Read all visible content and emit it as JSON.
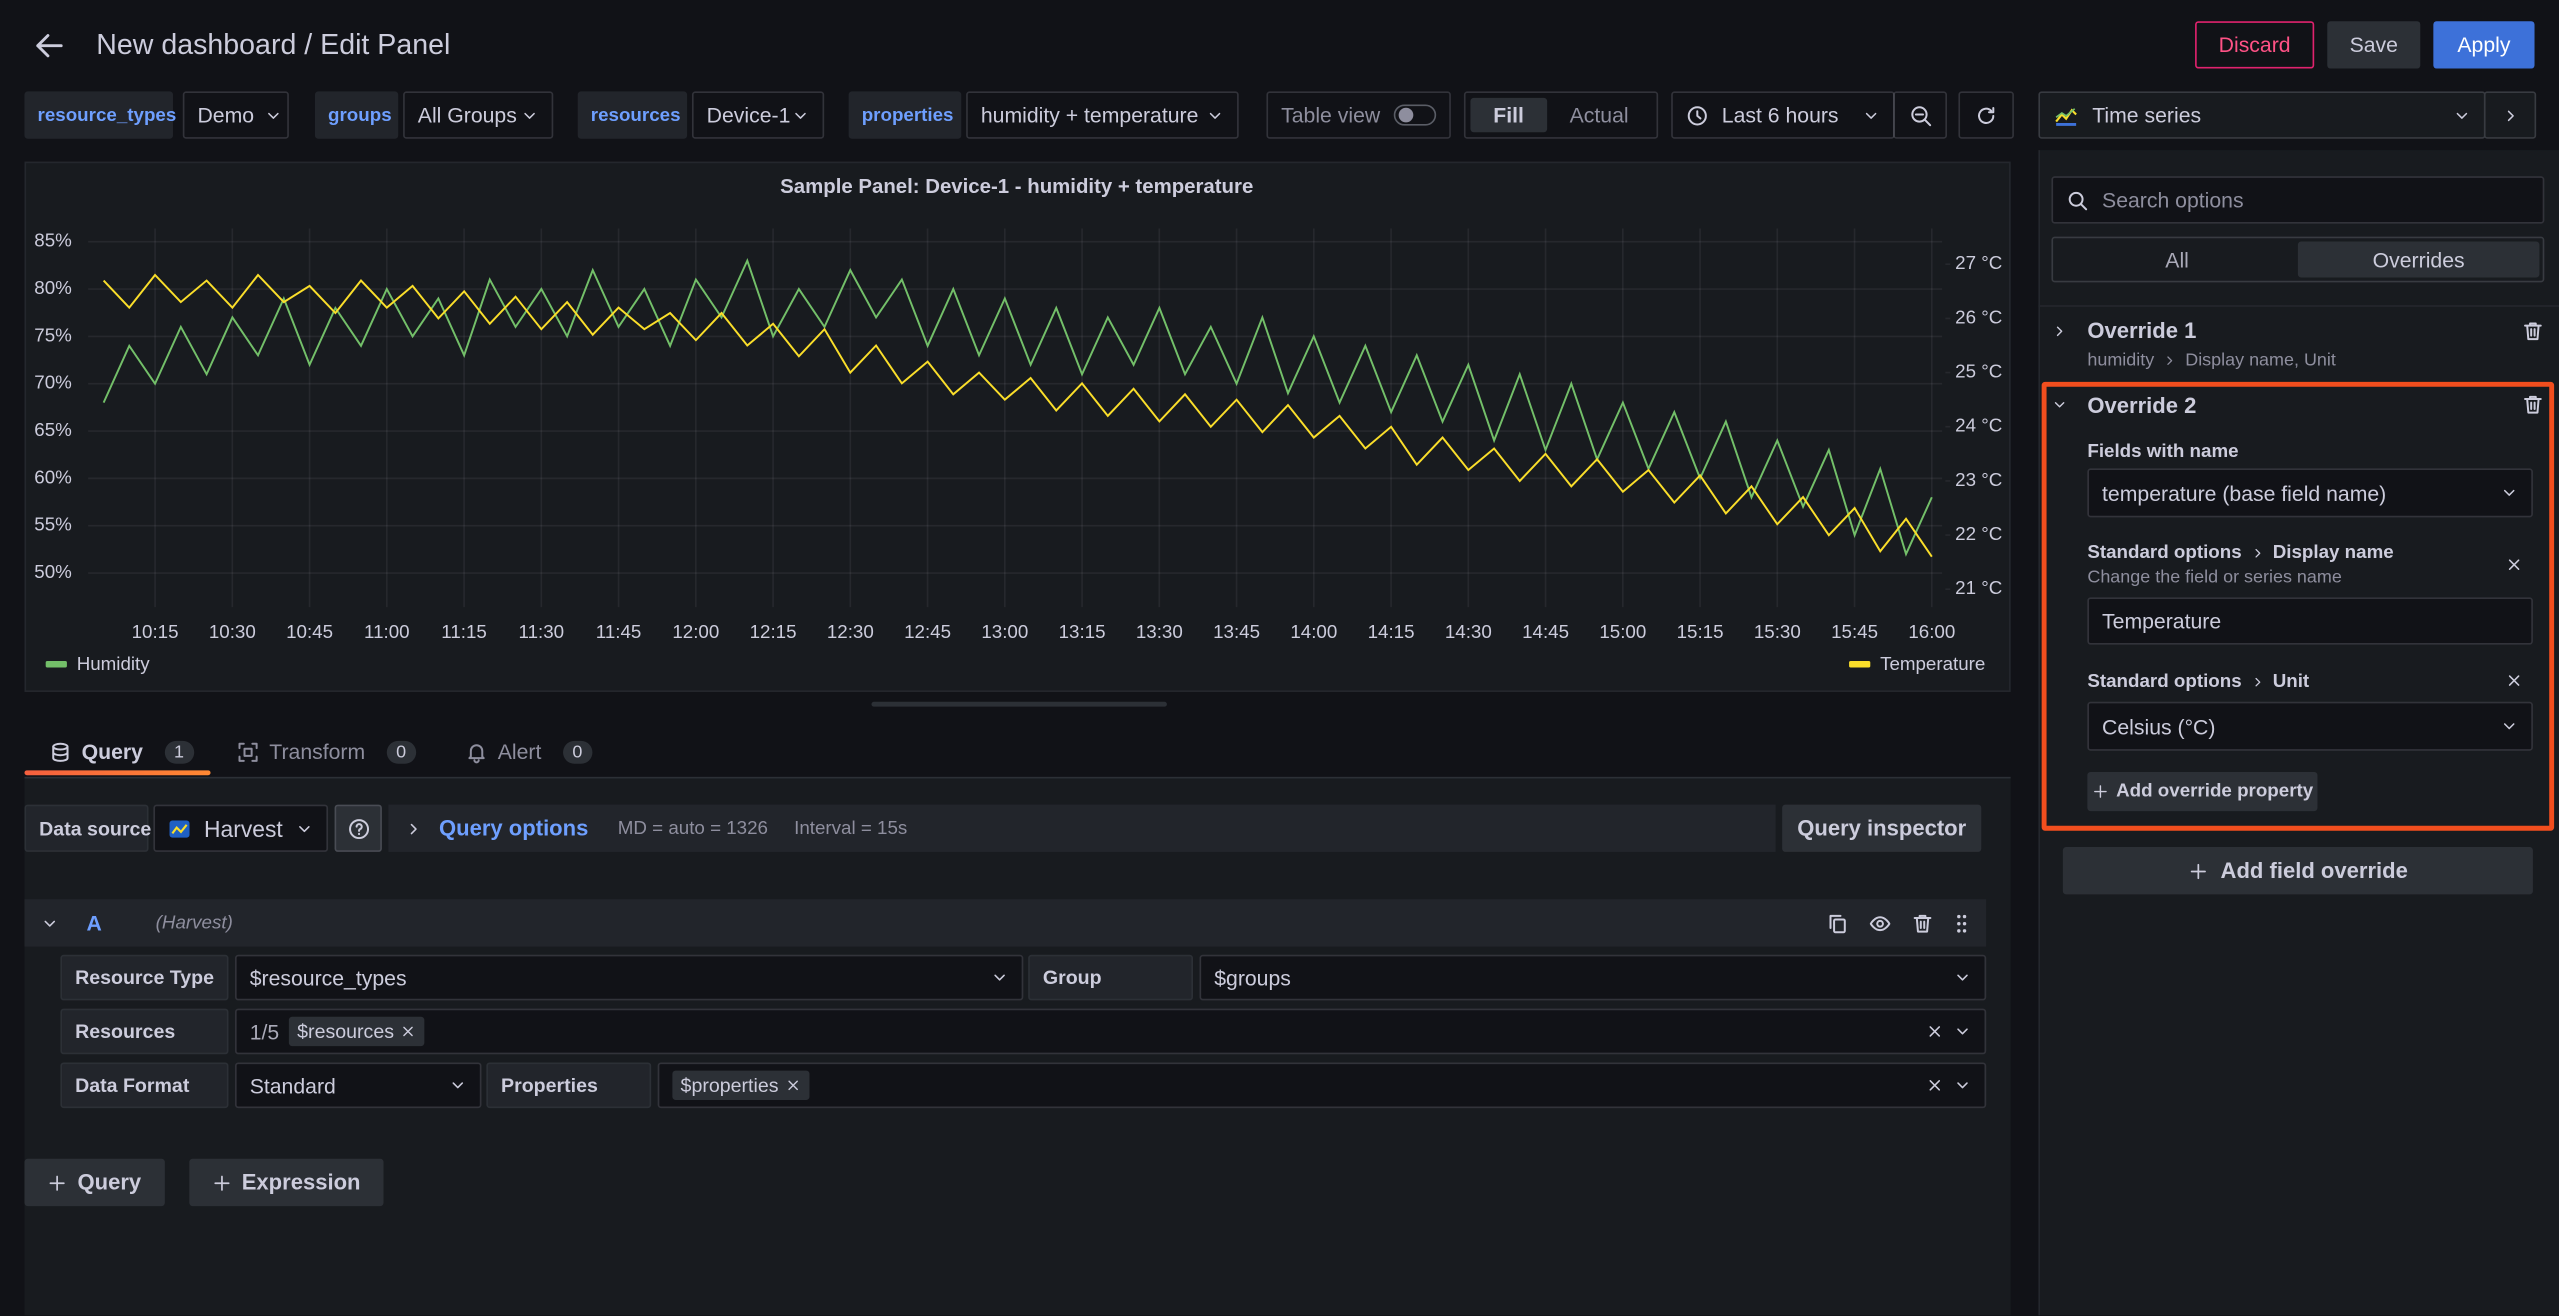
{
  "header": {
    "title": "New dashboard / Edit Panel",
    "buttons": [
      "Discard",
      "Save",
      "Apply"
    ]
  },
  "variables": [
    {
      "label": "resource_types",
      "value": "Demo"
    },
    {
      "label": "groups",
      "value": "All Groups"
    },
    {
      "label": "resources",
      "value": "Device-1"
    },
    {
      "label": "properties",
      "value": "humidity + temperature"
    }
  ],
  "toolbar": {
    "table_view": "Table view",
    "fill": "Fill",
    "actual": "Actual",
    "time_range": "Last 6 hours",
    "visualization": "Time series"
  },
  "chart_data": {
    "type": "line",
    "title": "Sample Panel: Device-1 - humidity + temperature",
    "grid": true,
    "x": [
      "10:05",
      "10:10",
      "10:15",
      "10:20",
      "10:25",
      "10:30",
      "10:35",
      "10:40",
      "10:45",
      "10:50",
      "10:55",
      "11:00",
      "11:05",
      "11:10",
      "11:15",
      "11:20",
      "11:25",
      "11:30",
      "11:35",
      "11:40",
      "11:45",
      "11:50",
      "11:55",
      "12:00",
      "12:05",
      "12:10",
      "12:15",
      "12:20",
      "12:25",
      "12:30",
      "12:35",
      "12:40",
      "12:45",
      "12:50",
      "12:55",
      "13:00",
      "13:05",
      "13:10",
      "13:15",
      "13:20",
      "13:25",
      "13:30",
      "13:35",
      "13:40",
      "13:45",
      "13:50",
      "13:55",
      "14:00",
      "14:05",
      "14:10",
      "14:15",
      "14:20",
      "14:25",
      "14:30",
      "14:35",
      "14:40",
      "14:45",
      "14:50",
      "14:55",
      "15:00",
      "15:05",
      "15:10",
      "15:15",
      "15:20",
      "15:25",
      "15:30",
      "15:35",
      "15:40",
      "15:45",
      "15:50",
      "15:55",
      "16:00"
    ],
    "xlim": [
      "10:02",
      "16:02"
    ],
    "xticks": [
      "10:15",
      "10:30",
      "10:45",
      "11:00",
      "11:15",
      "11:30",
      "11:45",
      "12:00",
      "12:15",
      "12:30",
      "12:45",
      "13:00",
      "13:15",
      "13:30",
      "13:45",
      "14:00",
      "14:15",
      "14:30",
      "14:45",
      "15:00",
      "15:15",
      "15:30",
      "15:45",
      "16:00"
    ],
    "ylim": [
      46.4,
      86.4
    ],
    "yticks": [
      {
        "value": 50,
        "label": "50%"
      },
      {
        "value": 55,
        "label": "55%"
      },
      {
        "value": 60,
        "label": "60%"
      },
      {
        "value": 65,
        "label": "65%"
      },
      {
        "value": 70,
        "label": "70%"
      },
      {
        "value": 75,
        "label": "75%"
      },
      {
        "value": 80,
        "label": "80%"
      },
      {
        "value": 85,
        "label": "85%"
      }
    ],
    "y2lim": [
      20.67,
      27.66
    ],
    "y2ticks": [
      {
        "value": 21,
        "label": "21 °C"
      },
      {
        "value": 22,
        "label": "22 °C"
      },
      {
        "value": 23,
        "label": "23 °C"
      },
      {
        "value": 24,
        "label": "24 °C"
      },
      {
        "value": 25,
        "label": "25 °C"
      },
      {
        "value": 26,
        "label": "26 °C"
      },
      {
        "value": 27,
        "label": "27 °C"
      }
    ],
    "series": [
      {
        "name": "Humidity",
        "color": "#73bf69",
        "values": [
          68,
          74,
          70,
          76,
          71,
          77,
          73,
          79,
          72,
          78,
          74,
          80,
          75,
          79,
          73,
          81,
          76,
          80,
          75,
          82,
          76,
          80,
          74,
          81,
          77,
          83,
          75,
          80,
          76,
          82,
          77,
          81,
          74,
          80,
          73,
          79,
          72,
          78,
          71,
          77,
          72,
          78,
          71,
          76,
          70,
          77,
          69,
          75,
          68,
          74,
          67,
          73,
          66,
          72,
          64,
          71,
          63,
          70,
          62,
          68,
          61,
          67,
          60,
          66,
          58,
          64,
          57,
          63,
          54,
          61,
          52,
          58
        ]
      },
      {
        "name": "Temperature",
        "color": "#fade2a",
        "axis": "y2",
        "values": [
          26.7,
          26.2,
          26.8,
          26.3,
          26.7,
          26.2,
          26.8,
          26.3,
          26.6,
          26.1,
          26.7,
          26.2,
          26.6,
          26.0,
          26.5,
          25.9,
          26.4,
          25.8,
          26.3,
          25.7,
          26.2,
          25.8,
          26.1,
          25.6,
          26.1,
          25.5,
          25.9,
          25.3,
          25.8,
          25.0,
          25.5,
          24.8,
          25.2,
          24.6,
          25.0,
          24.5,
          24.9,
          24.3,
          24.8,
          24.2,
          24.7,
          24.1,
          24.6,
          24.0,
          24.5,
          23.9,
          24.4,
          23.8,
          24.2,
          23.6,
          24.0,
          23.3,
          23.8,
          23.2,
          23.6,
          23.0,
          23.5,
          22.9,
          23.4,
          22.8,
          23.2,
          22.6,
          23.1,
          22.4,
          22.9,
          22.2,
          22.7,
          22.0,
          22.5,
          21.7,
          22.3,
          21.6
        ]
      }
    ]
  },
  "tabs": [
    {
      "label": "Query",
      "count": 1
    },
    {
      "label": "Transform",
      "count": 0
    },
    {
      "label": "Alert",
      "count": 0
    }
  ],
  "query": {
    "data_source_label": "Data source",
    "data_source": "Harvest",
    "options_label": "Query options",
    "md": "MD = auto = 1326",
    "interval": "Interval = 15s",
    "inspector": "Query inspector",
    "ref_id": "A",
    "ref_source": "(Harvest)",
    "resource_type": {
      "label": "Resource Type",
      "value": "$resource_types"
    },
    "group": {
      "label": "Group",
      "value": "$groups"
    },
    "resources": {
      "label": "Resources",
      "count": "1/5",
      "chips": [
        "$resources"
      ]
    },
    "data_format": {
      "label": "Data Format",
      "value": "Standard"
    },
    "properties": {
      "label": "Properties",
      "chips": [
        "$properties"
      ]
    }
  },
  "add_buttons": [
    "Query",
    "Expression"
  ],
  "options": {
    "search_placeholder": "Search options",
    "tabs": [
      "All",
      "Overrides"
    ],
    "overrides": [
      {
        "title": "Override 1",
        "matcher": "humidity",
        "summary": "Display name, Unit"
      },
      {
        "title": "Override 2",
        "matcher_label": "Fields with name",
        "matcher": "temperature (base field name)",
        "properties": [
          {
            "category": "Standard options",
            "name": "Display name",
            "description": "Change the field or series name",
            "value": "Temperature"
          },
          {
            "category": "Standard options",
            "name": "Unit",
            "value": "Celsius (°C)"
          }
        ],
        "add_property": "Add override property"
      }
    ],
    "add_override": "Add field override"
  }
}
